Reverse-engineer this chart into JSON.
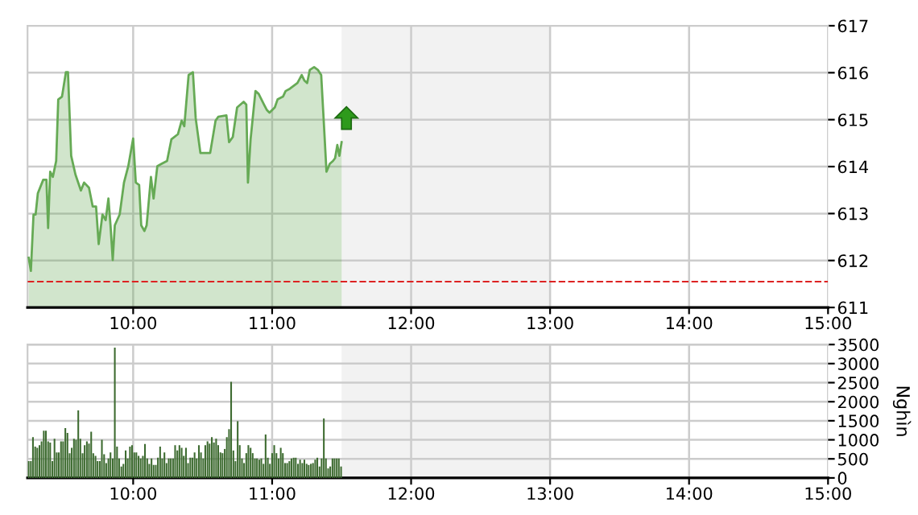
{
  "chart_data": [
    {
      "type": "area",
      "xlim": [
        9.24,
        15
      ],
      "ylim": [
        611,
        617
      ],
      "yticks": [
        611,
        612,
        613,
        614,
        615,
        616,
        617
      ],
      "xticks": [
        {
          "value": 10,
          "label": "10:00"
        },
        {
          "value": 11,
          "label": "11:00"
        },
        {
          "value": 12,
          "label": "12:00"
        },
        {
          "value": 13,
          "label": "13:00"
        },
        {
          "value": 14,
          "label": "14:00"
        },
        {
          "value": 15,
          "label": "15:00"
        }
      ],
      "grid": true,
      "bands": [
        {
          "axis": "x",
          "from": 11.5,
          "to": 13,
          "color": "#f2f2f2"
        }
      ],
      "ref_lines": [
        {
          "axis": "y",
          "value": 611.55,
          "color": "#dd2222",
          "line_style": "dashed"
        }
      ],
      "series": [
        {
          "color": "#66aa55",
          "x": [
            9.248,
            9.264,
            9.283,
            9.298,
            9.314,
            9.353,
            9.376,
            9.388,
            9.403,
            9.422,
            9.446,
            9.461,
            9.488,
            9.516,
            9.531,
            9.554,
            9.585,
            9.624,
            9.647,
            9.682,
            9.709,
            9.733,
            9.752,
            9.779,
            9.802,
            9.822,
            9.837,
            9.853,
            9.868,
            9.903,
            9.934,
            9.965,
            10.0,
            10.019,
            10.043,
            10.058,
            10.081,
            10.097,
            10.128,
            10.147,
            10.174,
            10.205,
            10.244,
            10.275,
            10.322,
            10.349,
            10.368,
            10.399,
            10.43,
            10.45,
            10.484,
            10.535,
            10.554,
            10.593,
            10.612,
            10.671,
            10.69,
            10.717,
            10.748,
            10.795,
            10.814,
            10.826,
            10.845,
            10.88,
            10.903,
            10.942,
            10.961,
            10.981,
            11.019,
            11.039,
            11.078,
            11.097,
            11.128,
            11.155,
            11.182,
            11.213,
            11.233,
            11.252,
            11.271,
            11.302,
            11.329,
            11.353,
            11.368,
            11.391,
            11.415,
            11.438,
            11.453,
            11.469,
            11.484,
            11.5
          ],
          "values": [
            612.06,
            611.78,
            612.98,
            612.98,
            613.43,
            613.72,
            613.72,
            612.69,
            613.89,
            613.78,
            614.12,
            615.43,
            615.49,
            616.01,
            616.01,
            614.23,
            613.83,
            613.49,
            613.66,
            613.55,
            613.15,
            613.15,
            612.35,
            612.98,
            612.86,
            613.32,
            612.75,
            612.01,
            612.75,
            612.98,
            613.66,
            614.01,
            614.6,
            613.66,
            613.61,
            612.75,
            612.63,
            612.75,
            613.78,
            613.32,
            614.01,
            614.06,
            614.12,
            614.58,
            614.69,
            614.98,
            614.86,
            615.95,
            616.01,
            615.03,
            614.29,
            614.29,
            614.29,
            614.98,
            615.06,
            615.09,
            614.52,
            614.63,
            615.26,
            615.38,
            615.32,
            613.66,
            614.58,
            615.61,
            615.55,
            615.32,
            615.21,
            615.15,
            615.26,
            615.43,
            615.49,
            615.61,
            615.66,
            615.72,
            615.78,
            615.95,
            615.83,
            615.78,
            616.06,
            616.12,
            616.06,
            615.95,
            615.15,
            613.89,
            614.06,
            614.12,
            614.18,
            614.46,
            614.23,
            614.52
          ]
        }
      ]
    },
    {
      "type": "bar",
      "ylabel": "Nghìn",
      "xlim": [
        9.24,
        15
      ],
      "ylim": [
        0,
        3500
      ],
      "yticks": [
        0,
        500,
        1000,
        1500,
        2000,
        2500,
        3000,
        3500
      ],
      "xticks": [
        {
          "value": 10,
          "label": "10:00"
        },
        {
          "value": 11,
          "label": "11:00"
        },
        {
          "value": 12,
          "label": "12:00"
        },
        {
          "value": 13,
          "label": "13:00"
        },
        {
          "value": 14,
          "label": "14:00"
        },
        {
          "value": 15,
          "label": "15:00"
        }
      ],
      "grid": true,
      "bands": [
        {
          "axis": "x",
          "from": 11.5,
          "to": 13,
          "color": "#f2f2f2"
        }
      ],
      "series": [
        {
          "color": "#3d6b30",
          "x": [
            9.248,
            9.264,
            9.279,
            9.295,
            9.31,
            9.326,
            9.341,
            9.357,
            9.372,
            9.388,
            9.403,
            9.419,
            9.434,
            9.45,
            9.465,
            9.481,
            9.496,
            9.512,
            9.527,
            9.543,
            9.558,
            9.574,
            9.589,
            9.605,
            9.62,
            9.636,
            9.651,
            9.667,
            9.682,
            9.698,
            9.713,
            9.729,
            9.744,
            9.76,
            9.775,
            9.791,
            9.806,
            9.822,
            9.837,
            9.853,
            9.868,
            9.884,
            9.899,
            9.915,
            9.93,
            9.946,
            9.961,
            9.977,
            9.992,
            10.008,
            10.023,
            10.039,
            10.054,
            10.07,
            10.085,
            10.101,
            10.116,
            10.132,
            10.147,
            10.163,
            10.178,
            10.194,
            10.209,
            10.225,
            10.24,
            10.256,
            10.271,
            10.287,
            10.302,
            10.318,
            10.333,
            10.349,
            10.364,
            10.38,
            10.395,
            10.411,
            10.426,
            10.442,
            10.457,
            10.473,
            10.488,
            10.504,
            10.519,
            10.535,
            10.55,
            10.566,
            10.581,
            10.597,
            10.612,
            10.628,
            10.643,
            10.659,
            10.674,
            10.69,
            10.705,
            10.721,
            10.736,
            10.752,
            10.767,
            10.783,
            10.798,
            10.814,
            10.829,
            10.845,
            10.86,
            10.876,
            10.891,
            10.907,
            10.922,
            10.938,
            10.953,
            10.969,
            10.984,
            11.0,
            11.015,
            11.031,
            11.046,
            11.062,
            11.077,
            11.093,
            11.108,
            11.124,
            11.139,
            11.155,
            11.17,
            11.186,
            11.201,
            11.217,
            11.232,
            11.248,
            11.263,
            11.279,
            11.294,
            11.31,
            11.325,
            11.341,
            11.356,
            11.372,
            11.387,
            11.403,
            11.418,
            11.434,
            11.449,
            11.465,
            11.48,
            11.496
          ],
          "values": [
            440,
            440,
            1070,
            820,
            790,
            860,
            960,
            1240,
            1240,
            960,
            930,
            440,
            1030,
            670,
            670,
            960,
            960,
            1310,
            1180,
            650,
            790,
            1030,
            1000,
            1770,
            1030,
            650,
            860,
            960,
            900,
            1210,
            650,
            580,
            440,
            440,
            1000,
            620,
            390,
            510,
            670,
            510,
            3420,
            820,
            510,
            300,
            370,
            720,
            510,
            820,
            860,
            670,
            670,
            580,
            510,
            580,
            890,
            510,
            370,
            510,
            340,
            340,
            530,
            820,
            510,
            670,
            390,
            510,
            510,
            510,
            860,
            720,
            860,
            790,
            580,
            790,
            390,
            530,
            530,
            670,
            510,
            860,
            670,
            510,
            860,
            960,
            900,
            1070,
            930,
            1030,
            860,
            670,
            650,
            760,
            1070,
            1280,
            2520,
            720,
            440,
            1490,
            860,
            510,
            390,
            650,
            860,
            790,
            650,
            510,
            510,
            480,
            510,
            370,
            1140,
            530,
            370,
            650,
            860,
            650,
            510,
            790,
            650,
            390,
            390,
            440,
            510,
            530,
            530,
            370,
            480,
            390,
            480,
            370,
            340,
            370,
            390,
            480,
            530,
            300,
            510,
            1560,
            510,
            250,
            300,
            510,
            510,
            510,
            510,
            300
          ]
        }
      ]
    }
  ]
}
